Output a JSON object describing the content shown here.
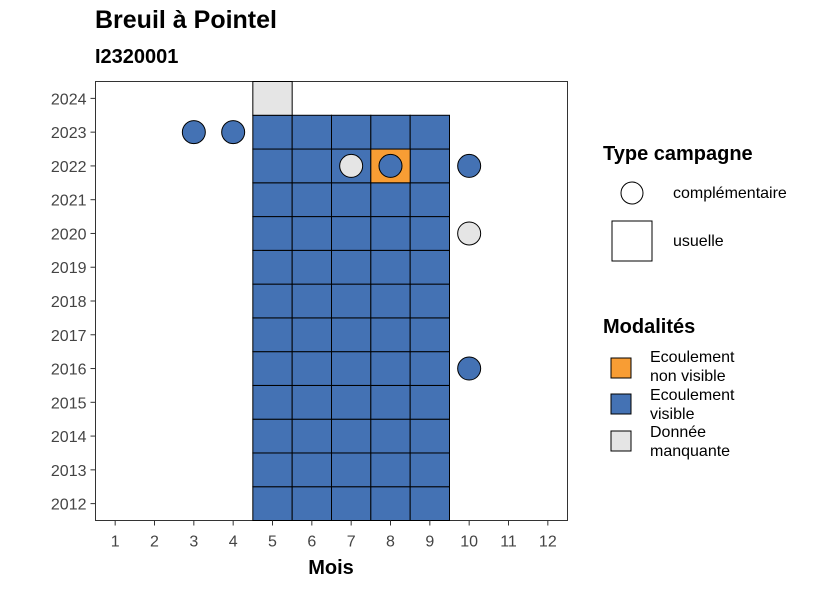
{
  "header": {
    "title": "Breuil à Pointel",
    "subtitle": "I2320001"
  },
  "colors": {
    "modalites": {
      "Ecoulement non visible": "#f89d34",
      "Ecoulement visible": "#4472b4",
      "Donnée manquante": "#e5e5e5"
    }
  },
  "legend": {
    "type": {
      "title": "Type campagne",
      "items": [
        {
          "label": "complémentaire",
          "shape": "circle"
        },
        {
          "label": "usuelle",
          "shape": "square"
        }
      ]
    },
    "modalites": {
      "title": "Modalités",
      "items": [
        {
          "line1": "Ecoulement",
          "line2": "non visible",
          "color": "#f89d34"
        },
        {
          "line1": "Ecoulement",
          "line2": "visible",
          "color": "#4472b4"
        },
        {
          "line1": "Donnée",
          "line2": "manquante",
          "color": "#e5e5e5"
        }
      ]
    }
  },
  "chart_data": {
    "type": "heatmap",
    "title": "Breuil à Pointel",
    "subtitle": "I2320001",
    "xlabel": "Mois",
    "ylabel": "",
    "xlim": [
      0.5,
      12.5
    ],
    "ylim": [
      2011.5,
      2024.5
    ],
    "x_ticks": [
      1,
      2,
      3,
      4,
      5,
      6,
      7,
      8,
      9,
      10,
      11,
      12
    ],
    "y_ticks": [
      2012,
      2013,
      2014,
      2015,
      2016,
      2017,
      2018,
      2019,
      2020,
      2021,
      2022,
      2023,
      2024
    ],
    "grid": false,
    "legend_position": "right",
    "usuelle": [
      {
        "annee": 2012,
        "mois": [
          5,
          6,
          7,
          8,
          9
        ],
        "modalite": "Ecoulement visible"
      },
      {
        "annee": 2013,
        "mois": [
          5,
          6,
          7,
          8,
          9
        ],
        "modalite": "Ecoulement visible"
      },
      {
        "annee": 2014,
        "mois": [
          5,
          6,
          7,
          8,
          9
        ],
        "modalite": "Ecoulement visible"
      },
      {
        "annee": 2015,
        "mois": [
          5,
          6,
          7,
          8,
          9
        ],
        "modalite": "Ecoulement visible"
      },
      {
        "annee": 2016,
        "mois": [
          5,
          6,
          7,
          8,
          9
        ],
        "modalite": "Ecoulement visible"
      },
      {
        "annee": 2017,
        "mois": [
          5,
          6,
          7,
          8,
          9
        ],
        "modalite": "Ecoulement visible"
      },
      {
        "annee": 2018,
        "mois": [
          5,
          6,
          7,
          8,
          9
        ],
        "modalite": "Ecoulement visible"
      },
      {
        "annee": 2019,
        "mois": [
          5,
          6,
          7,
          8,
          9
        ],
        "modalite": "Ecoulement visible"
      },
      {
        "annee": 2020,
        "mois": [
          5,
          6,
          7,
          8,
          9
        ],
        "modalite": "Ecoulement visible"
      },
      {
        "annee": 2021,
        "mois": [
          5,
          6,
          7,
          8,
          9
        ],
        "modalite": "Ecoulement visible"
      },
      {
        "annee": 2022,
        "mois": [
          5,
          6,
          7,
          9
        ],
        "modalite": "Ecoulement visible"
      },
      {
        "annee": 2022,
        "mois": [
          8
        ],
        "modalite": "Ecoulement non visible"
      },
      {
        "annee": 2023,
        "mois": [
          5,
          6,
          7,
          8,
          9
        ],
        "modalite": "Ecoulement visible"
      },
      {
        "annee": 2024,
        "mois": [
          5
        ],
        "modalite": "Donnée manquante"
      }
    ],
    "complementaire": [
      {
        "annee": 2023,
        "mois": 3,
        "modalite": "Ecoulement visible"
      },
      {
        "annee": 2023,
        "mois": 4,
        "modalite": "Ecoulement visible"
      },
      {
        "annee": 2022,
        "mois": 7,
        "modalite": "Donnée manquante"
      },
      {
        "annee": 2022,
        "mois": 8,
        "modalite": "Ecoulement visible"
      },
      {
        "annee": 2022,
        "mois": 10,
        "modalite": "Ecoulement visible"
      },
      {
        "annee": 2020,
        "mois": 10,
        "modalite": "Donnée manquante"
      },
      {
        "annee": 2016,
        "mois": 10,
        "modalite": "Ecoulement visible"
      }
    ]
  }
}
